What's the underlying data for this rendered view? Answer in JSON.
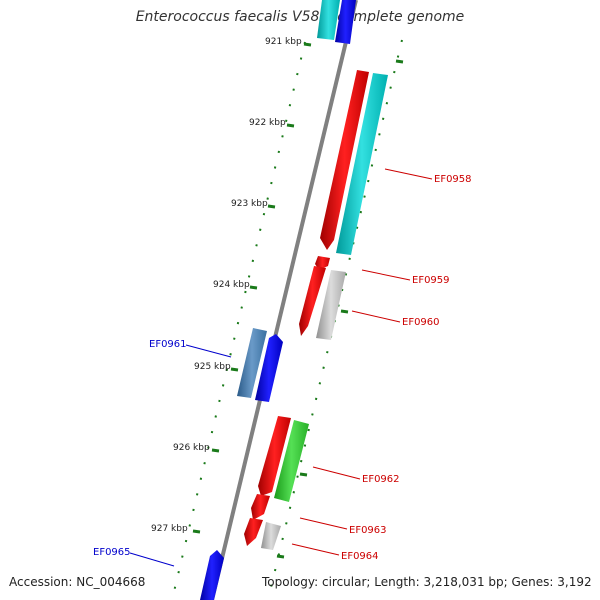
{
  "title": "Enterococcus faecalis V583, complete genome",
  "accession": "Accession: NC_004668",
  "summary": "Topology: circular; Length: 3,218,031 bp; Genes: 3,192",
  "ticks": [
    "921 kbp",
    "922 kbp",
    "923 kbp",
    "924 kbp",
    "925 kbp",
    "926 kbp",
    "927 kbp"
  ],
  "gene_labels": [
    {
      "name": "EF0958",
      "strand": "forward"
    },
    {
      "name": "EF0959",
      "strand": "forward"
    },
    {
      "name": "EF0960",
      "strand": "forward"
    },
    {
      "name": "EF0961",
      "strand": "reverse"
    },
    {
      "name": "EF0962",
      "strand": "forward"
    },
    {
      "name": "EF0963",
      "strand": "forward"
    },
    {
      "name": "EF0964",
      "strand": "forward"
    },
    {
      "name": "EF0965",
      "strand": "reverse"
    }
  ],
  "colors": {
    "forward_label": "#cc0000",
    "reverse_label": "#0000cc",
    "backbone": "#808080",
    "tick": "#1a7a1a",
    "cds_red": "#ff0000",
    "cds_blue": "#0000ff",
    "cds_cyan": "#00cccc",
    "cds_steel": "#4682b4",
    "cds_green": "#33cc33",
    "cds_gray": "#b0b0b0"
  }
}
